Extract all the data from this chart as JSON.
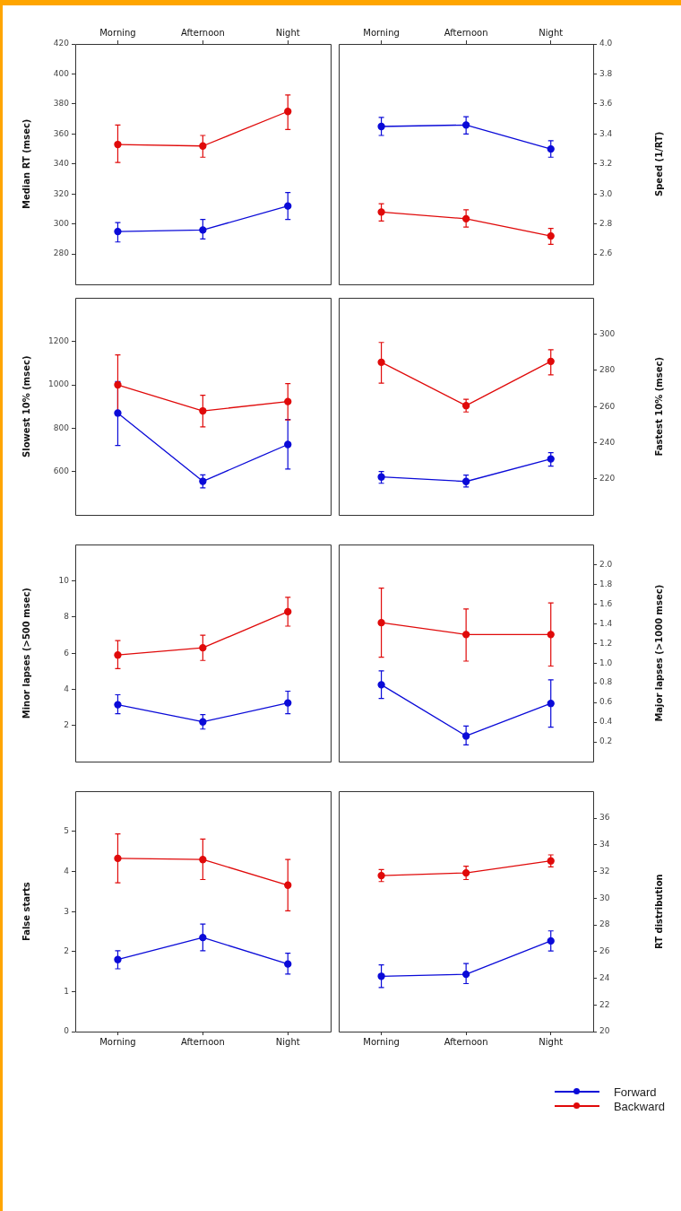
{
  "chart_data": [
    {
      "type": "line",
      "ylabel": "Median RT (msec)",
      "categories": [
        "Morning",
        "Afternoon",
        "Night"
      ],
      "ylim": [
        260,
        420
      ],
      "yticks": [
        280,
        300,
        320,
        340,
        360,
        380,
        400,
        420
      ],
      "marker": "circle",
      "line_style": "solid",
      "series": [
        {
          "color": "#0a0ad8",
          "values": [
            295,
            296,
            312
          ],
          "errors": [
            [
              288,
              301
            ],
            [
              290,
              303
            ],
            [
              303,
              321
            ]
          ]
        },
        {
          "color": "#e00a0a",
          "values": [
            353,
            352,
            375
          ],
          "errors": [
            [
              341,
              366
            ],
            [
              344.5,
              359
            ],
            [
              363,
              386
            ]
          ]
        }
      ]
    },
    {
      "type": "line",
      "ylabel": "Speed (1/RT)",
      "categories": [
        "Morning",
        "Afternoon",
        "Night"
      ],
      "ylim": [
        2.4,
        4.0
      ],
      "yticks": [
        {
          "value": 2.6,
          "label": "2.6"
        },
        {
          "value": 2.8,
          "label": "2.8"
        },
        {
          "value": 3.0,
          "label": "3.0"
        },
        {
          "value": 3.2,
          "label": "3.2"
        },
        {
          "value": 3.4,
          "label": "3.4"
        },
        {
          "value": 3.6,
          "label": "3.6"
        },
        {
          "value": 3.8,
          "label": "3.8"
        },
        {
          "value": 4.0,
          "label": "4.0"
        }
      ],
      "marker": "circle",
      "line_style": "solid",
      "series": [
        {
          "color": "#0a0ad8",
          "values": [
            3.45,
            3.46,
            3.3
          ],
          "errors": [
            [
              3.39,
              3.51
            ],
            [
              3.4,
              3.515
            ],
            [
              3.245,
              3.355
            ]
          ]
        },
        {
          "color": "#e00a0a",
          "values": [
            2.88,
            2.835,
            2.72
          ],
          "errors": [
            [
              2.82,
              2.935
            ],
            [
              2.78,
              2.895
            ],
            [
              2.665,
              2.77
            ]
          ]
        }
      ]
    },
    {
      "type": "line",
      "ylabel": "Slowest 10% (msec)",
      "categories": [
        null,
        null,
        null
      ],
      "tick_labels": "y",
      "ylim": [
        400,
        1400
      ],
      "yticks": [
        600,
        800,
        1000,
        1200
      ],
      "marker": "circle",
      "line_style": "solid",
      "series": [
        {
          "color": "#0a0ad8",
          "values": [
            870,
            555,
            725
          ],
          "errors": [
            [
              720,
              1015
            ],
            [
              525,
              585
            ],
            [
              612,
              840
            ]
          ]
        },
        {
          "color": "#e00a0a",
          "values": [
            1000,
            880,
            923
          ],
          "errors": [
            [
              862,
              1138
            ],
            [
              806,
              952
            ],
            [
              838,
              1006
            ]
          ]
        }
      ]
    },
    {
      "type": "line",
      "ylabel": "Fastest 10% (msec)",
      "categories": [
        null,
        null,
        null
      ],
      "tick_labels": "y",
      "ylim": [
        200,
        320
      ],
      "yticks": [
        220,
        240,
        260,
        280,
        300
      ],
      "marker": "circle",
      "line_style": "solid",
      "series": [
        {
          "color": "#0a0ad8",
          "values": [
            221,
            218.5,
            231
          ],
          "errors": [
            [
              217.5,
              224
            ],
            [
              215.5,
              222
            ],
            [
              227,
              234.5
            ]
          ]
        },
        {
          "color": "#e00a0a",
          "values": [
            284.5,
            260.5,
            285
          ],
          "errors": [
            [
              273,
              295.5
            ],
            [
              257,
              264
            ],
            [
              277.5,
              291.5
            ]
          ]
        }
      ]
    },
    {
      "type": "line",
      "ylabel": "Minor lapses (>500 msec)",
      "categories": [
        null,
        null,
        null
      ],
      "tick_labels": "y",
      "ylim": [
        0,
        12
      ],
      "yticks": [
        2,
        4,
        6,
        8,
        10
      ],
      "marker": "circle",
      "line_style": "solid",
      "series": [
        {
          "color": "#0a0ad8",
          "values": [
            3.15,
            2.2,
            3.25
          ],
          "errors": [
            [
              2.65,
              3.7
            ],
            [
              1.8,
              2.6
            ],
            [
              2.65,
              3.9
            ]
          ]
        },
        {
          "color": "#e00a0a",
          "values": [
            5.9,
            6.3,
            8.3
          ],
          "errors": [
            [
              5.15,
              6.7
            ],
            [
              5.6,
              7.0
            ],
            [
              7.5,
              9.1
            ]
          ]
        }
      ]
    },
    {
      "type": "line",
      "ylabel": "Major lapses (>1000 msec)",
      "categories": [
        null,
        null,
        null
      ],
      "tick_labels": "y",
      "ylim": [
        0,
        2.2
      ],
      "yticks": [
        {
          "value": 0.2,
          "label": "0.2"
        },
        {
          "value": 0.4,
          "label": "0.4"
        },
        {
          "value": 0.6,
          "label": "0.6"
        },
        {
          "value": 0.8,
          "label": "0.8"
        },
        {
          "value": 1.0,
          "label": "1.0"
        },
        {
          "value": 1.2,
          "label": "1.2"
        },
        {
          "value": 1.4,
          "label": "1.4"
        },
        {
          "value": 1.6,
          "label": "1.6"
        },
        {
          "value": 1.8,
          "label": "1.8"
        },
        {
          "value": 2.0,
          "label": "2.0"
        }
      ],
      "marker": "circle",
      "line_style": "solid",
      "series": [
        {
          "color": "#0a0ad8",
          "values": [
            0.78,
            0.26,
            0.59
          ],
          "errors": [
            [
              0.64,
              0.92
            ],
            [
              0.17,
              0.36
            ],
            [
              0.35,
              0.83
            ]
          ]
        },
        {
          "color": "#e00a0a",
          "values": [
            1.41,
            1.29,
            1.29
          ],
          "errors": [
            [
              1.06,
              1.76
            ],
            [
              1.02,
              1.55
            ],
            [
              0.97,
              1.61
            ]
          ]
        }
      ]
    },
    {
      "type": "line",
      "ylabel": "False starts",
      "categories": [
        "Morning",
        "Afternoon",
        "Night"
      ],
      "ylim": [
        0,
        6
      ],
      "yticks": [
        0,
        1,
        2,
        3,
        4,
        5
      ],
      "marker": "circle",
      "line_style": "solid",
      "series": [
        {
          "color": "#0a0ad8",
          "values": [
            1.8,
            2.35,
            1.69
          ],
          "errors": [
            [
              1.57,
              2.02
            ],
            [
              2.02,
              2.69
            ],
            [
              1.44,
              1.96
            ]
          ]
        },
        {
          "color": "#e00a0a",
          "values": [
            4.33,
            4.3,
            3.66
          ],
          "errors": [
            [
              3.72,
              4.94
            ],
            [
              3.8,
              4.81
            ],
            [
              3.02,
              4.3
            ]
          ]
        }
      ]
    },
    {
      "type": "line",
      "ylabel": "RT distribution",
      "categories": [
        "Morning",
        "Afternoon",
        "Night"
      ],
      "ylim": [
        20,
        38
      ],
      "yticks": [
        20,
        22,
        24,
        26,
        28,
        30,
        32,
        34,
        36
      ],
      "marker": "circle",
      "line_style": "solid",
      "legend": "bottom right",
      "series": [
        {
          "name": "Forward",
          "color": "#0a0ad8",
          "values": [
            24.15,
            24.3,
            26.8
          ],
          "errors": [
            [
              23.3,
              25.0
            ],
            [
              23.6,
              25.1
            ],
            [
              26.05,
              27.55
            ]
          ]
        },
        {
          "name": "Backward",
          "color": "#e00a0a",
          "values": [
            31.7,
            31.9,
            32.8
          ],
          "errors": [
            [
              31.25,
              32.15
            ],
            [
              31.4,
              32.4
            ],
            [
              32.35,
              33.25
            ]
          ]
        }
      ]
    }
  ]
}
